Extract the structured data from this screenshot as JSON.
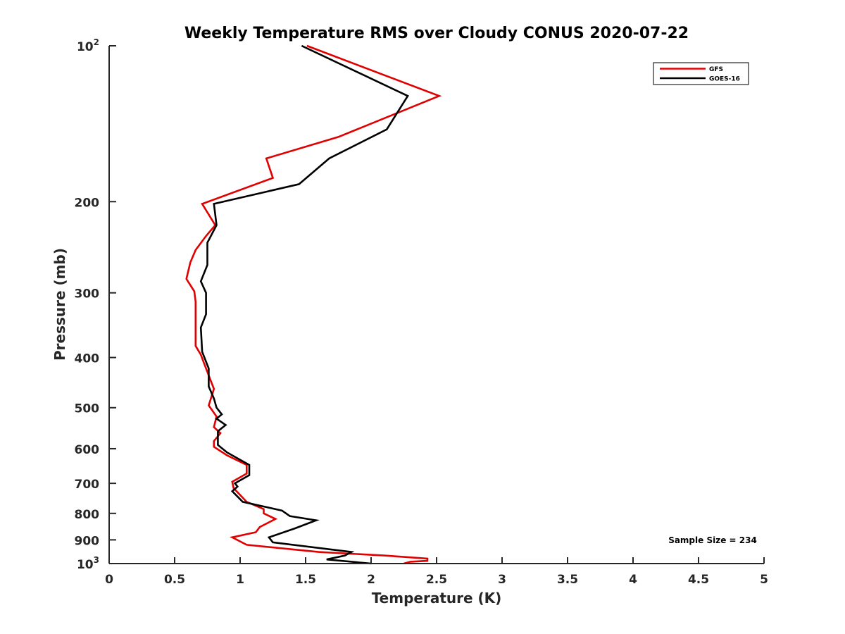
{
  "chart_data": {
    "type": "line",
    "title": "Weekly Temperature RMS over Cloudy CONUS 2020-07-22",
    "xlabel": "Temperature (K)",
    "ylabel": "Pressure (mb)",
    "xlim": [
      0,
      5
    ],
    "ylim": [
      100,
      1000
    ],
    "y_scale": "log",
    "y_reversed": true,
    "grid": false,
    "legend_position": "top-right",
    "x_ticks": [
      0,
      0.5,
      1,
      1.5,
      2,
      2.5,
      3,
      3.5,
      4,
      4.5,
      5
    ],
    "x_tick_labels": [
      "0",
      "0.5",
      "1",
      "1.5",
      "2",
      "2.5",
      "3",
      "3.5",
      "4",
      "4.5",
      "5"
    ],
    "y_ticks": [
      100,
      200,
      300,
      400,
      500,
      600,
      700,
      800,
      900,
      1000
    ],
    "y_tick_labels": [
      {
        "base": "10",
        "exp": "2"
      },
      {
        "text": "200"
      },
      {
        "text": "300"
      },
      {
        "text": "400"
      },
      {
        "text": "500"
      },
      {
        "text": "600"
      },
      {
        "text": "700"
      },
      {
        "text": "800"
      },
      {
        "text": "900"
      },
      {
        "base": "10",
        "exp": "3"
      }
    ],
    "annotation": "Sample Size = 234",
    "series": [
      {
        "name": "GFS",
        "color": "#e00000",
        "points": [
          [
            1.51,
            100
          ],
          [
            2.52,
            125
          ],
          [
            1.75,
            150
          ],
          [
            1.2,
            165
          ],
          [
            1.25,
            180
          ],
          [
            0.71,
            202
          ],
          [
            0.81,
            222
          ],
          [
            0.74,
            233
          ],
          [
            0.66,
            248
          ],
          [
            0.62,
            262
          ],
          [
            0.59,
            282
          ],
          [
            0.65,
            298
          ],
          [
            0.66,
            312
          ],
          [
            0.66,
            380
          ],
          [
            0.7,
            395
          ],
          [
            0.74,
            420
          ],
          [
            0.8,
            460
          ],
          [
            0.76,
            495
          ],
          [
            0.82,
            520
          ],
          [
            0.8,
            545
          ],
          [
            0.85,
            560
          ],
          [
            0.8,
            580
          ],
          [
            0.8,
            595
          ],
          [
            0.9,
            618
          ],
          [
            1.05,
            645
          ],
          [
            1.05,
            670
          ],
          [
            0.94,
            695
          ],
          [
            0.95,
            715
          ],
          [
            1.05,
            760
          ],
          [
            1.18,
            785
          ],
          [
            1.18,
            800
          ],
          [
            1.27,
            820
          ],
          [
            1.15,
            850
          ],
          [
            1.12,
            870
          ],
          [
            0.94,
            890
          ],
          [
            1.05,
            920
          ],
          [
            1.6,
            950
          ],
          [
            2.1,
            965
          ],
          [
            2.43,
            978
          ],
          [
            2.43,
            988
          ],
          [
            2.3,
            992
          ],
          [
            2.25,
            1000
          ]
        ]
      },
      {
        "name": "GOES-16",
        "color": "#000000",
        "points": [
          [
            1.47,
            100
          ],
          [
            2.28,
            125
          ],
          [
            2.12,
            145
          ],
          [
            1.68,
            165
          ],
          [
            1.45,
            185
          ],
          [
            0.8,
            202
          ],
          [
            0.82,
            222
          ],
          [
            0.75,
            240
          ],
          [
            0.75,
            265
          ],
          [
            0.7,
            285
          ],
          [
            0.74,
            300
          ],
          [
            0.74,
            330
          ],
          [
            0.7,
            350
          ],
          [
            0.71,
            390
          ],
          [
            0.76,
            420
          ],
          [
            0.76,
            455
          ],
          [
            0.8,
            480
          ],
          [
            0.82,
            500
          ],
          [
            0.86,
            515
          ],
          [
            0.82,
            525
          ],
          [
            0.89,
            540
          ],
          [
            0.83,
            555
          ],
          [
            0.83,
            590
          ],
          [
            0.9,
            610
          ],
          [
            1.07,
            645
          ],
          [
            1.07,
            675
          ],
          [
            0.96,
            700
          ],
          [
            0.98,
            710
          ],
          [
            0.94,
            725
          ],
          [
            1.02,
            760
          ],
          [
            1.32,
            790
          ],
          [
            1.38,
            810
          ],
          [
            1.58,
            825
          ],
          [
            1.42,
            855
          ],
          [
            1.22,
            890
          ],
          [
            1.25,
            910
          ],
          [
            1.85,
            950
          ],
          [
            1.8,
            965
          ],
          [
            1.66,
            982
          ],
          [
            2.0,
            1000
          ]
        ]
      }
    ]
  }
}
